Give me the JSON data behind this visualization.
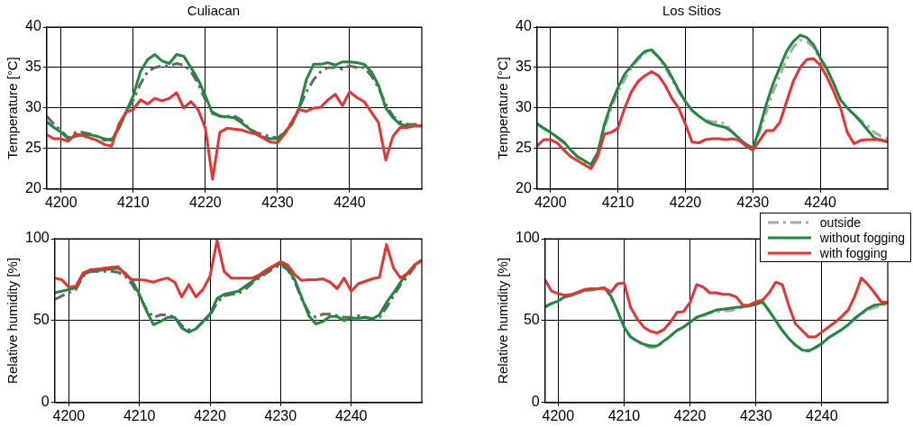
{
  "chart_data": [
    {
      "type": "line",
      "title": "Culiacan",
      "ylabel": "Temperature [°C]",
      "x": [
        4198,
        4199,
        4200,
        4201,
        4202,
        4203,
        4204,
        4205,
        4206,
        4207,
        4208,
        4209,
        4210,
        4211,
        4212,
        4213,
        4214,
        4215,
        4216,
        4217,
        4218,
        4219,
        4220,
        4221,
        4222,
        4223,
        4224,
        4225,
        4226,
        4227,
        4228,
        4229,
        4230,
        4231,
        4232,
        4233,
        4234,
        4235,
        4236,
        4237,
        4238,
        4239,
        4240,
        4241,
        4242,
        4243,
        4244,
        4245,
        4246,
        4247,
        4248,
        4249,
        4250
      ],
      "xlim": [
        4198,
        4250
      ],
      "xticks": [
        4200,
        4210,
        4220,
        4230,
        4240
      ],
      "ylim": [
        20,
        40
      ],
      "yticks": [
        20,
        25,
        30,
        35,
        40
      ],
      "grid": true,
      "series": [
        {
          "color": "#666666",
          "line_style": "dashed",
          "values": [
            29,
            28,
            27.2,
            26.3,
            27,
            27,
            26.8,
            26.5,
            26,
            26.2,
            27.5,
            29.5,
            31,
            33,
            34.5,
            35,
            35.2,
            35.2,
            35.5,
            35.3,
            34.5,
            33,
            31,
            29.5,
            29,
            29,
            29,
            28.5,
            27.5,
            27,
            26.7,
            26.5,
            26.3,
            27,
            28.3,
            30,
            32,
            33.5,
            34.5,
            35,
            35,
            34.8,
            35.2,
            35,
            35,
            34,
            32.5,
            30.5,
            29,
            28.3,
            28,
            28,
            28
          ]
        },
        {
          "color": "#1e8a3c",
          "line_style": "solid",
          "values": [
            28.3,
            27.6,
            27,
            26.2,
            26.5,
            26.7,
            26.7,
            26.5,
            26.2,
            26,
            27.5,
            29.5,
            31.5,
            34.5,
            36,
            36.6,
            35.8,
            35.5,
            36.6,
            36.4,
            35,
            33.5,
            31.5,
            29.3,
            29,
            28.9,
            28.8,
            28.2,
            27.5,
            26.8,
            26.4,
            26.2,
            26.2,
            27,
            28,
            30,
            33.5,
            35.4,
            35.4,
            35.6,
            35.3,
            35.7,
            35.7,
            35.6,
            35.4,
            34.5,
            32.8,
            30,
            28.8,
            28,
            27.8,
            27.8,
            27.8
          ]
        },
        {
          "color": "#ee3030",
          "line_style": "solid",
          "values": [
            26.7,
            26.2,
            26.2,
            25.9,
            26.8,
            26.6,
            26.3,
            26,
            25.5,
            25.3,
            28,
            29.5,
            29.8,
            31,
            30.5,
            31.2,
            30.9,
            31.2,
            31.9,
            30,
            30.8,
            29.8,
            27.5,
            21.2,
            27,
            27.5,
            27.4,
            27.3,
            27,
            26.8,
            26.3,
            25.8,
            25.7,
            26.8,
            28.3,
            29.8,
            29.6,
            30,
            30.1,
            31,
            31.7,
            30.3,
            32,
            31.3,
            30.8,
            29.5,
            28.2,
            23.6,
            26.5,
            27.6,
            27.6,
            27.8,
            27.8
          ]
        }
      ]
    },
    {
      "type": "line",
      "title": "Los Sitios",
      "ylabel": "Temperature [°C]",
      "x": [
        4198,
        4199,
        4200,
        4201,
        4202,
        4203,
        4204,
        4205,
        4206,
        4207,
        4208,
        4209,
        4210,
        4211,
        4212,
        4213,
        4214,
        4215,
        4216,
        4217,
        4218,
        4219,
        4220,
        4221,
        4222,
        4223,
        4224,
        4225,
        4226,
        4227,
        4228,
        4229,
        4230,
        4231,
        4232,
        4233,
        4234,
        4235,
        4236,
        4237,
        4238,
        4239,
        4240,
        4241,
        4242,
        4243,
        4244,
        4245,
        4246,
        4247,
        4248,
        4249,
        4250
      ],
      "xlim": [
        4198,
        4250
      ],
      "xticks": [
        4200,
        4210,
        4220,
        4230,
        4240
      ],
      "ylim": [
        20,
        40
      ],
      "yticks": [
        20,
        25,
        30,
        35,
        40
      ],
      "grid": true,
      "legend": "bottom right",
      "series": [
        {
          "name": "outside",
          "color": "#aaaaaa",
          "line_style": "dashed",
          "values": [
            28,
            27.5,
            27,
            26.3,
            25.6,
            24.8,
            24,
            23.3,
            22.8,
            24,
            27.5,
            30,
            32,
            33.5,
            35,
            36,
            36.8,
            37,
            36.3,
            35,
            33.5,
            32,
            30.8,
            29.7,
            29,
            28.5,
            28.3,
            28.3,
            28,
            27,
            26.3,
            25.5,
            25.2,
            27,
            29.5,
            32,
            34,
            36,
            37.5,
            38.4,
            38.2,
            37.5,
            36,
            34.5,
            33,
            31,
            30,
            29.2,
            28.5,
            27.8,
            27,
            26.5,
            26.2
          ]
        },
        {
          "name": "without fogging",
          "color": "#1e8a3c",
          "line_style": "solid",
          "values": [
            28.1,
            27.5,
            27,
            26.4,
            25.8,
            24.8,
            24,
            23.5,
            23,
            24.5,
            28,
            30.5,
            32.5,
            34.2,
            35.2,
            36.2,
            37,
            37.2,
            36.3,
            35.3,
            33.8,
            32.2,
            30.8,
            29.7,
            29,
            28.4,
            28,
            27.8,
            27.6,
            27,
            26.2,
            25.5,
            25,
            27.5,
            30.5,
            33,
            35,
            37,
            38.2,
            39,
            38.7,
            37.8,
            36.2,
            34.8,
            33,
            31,
            30,
            29.2,
            28.3,
            27.3,
            26.3,
            26,
            25.8
          ]
        },
        {
          "name": "with fogging",
          "color": "#ee3030",
          "line_style": "solid",
          "values": [
            25.3,
            26.1,
            26.1,
            25.7,
            24.8,
            24,
            23.5,
            23,
            22.5,
            24,
            26.8,
            27,
            27.5,
            30,
            32,
            33.3,
            34,
            34.5,
            34,
            32.8,
            31.2,
            30,
            28,
            25.8,
            25.7,
            26.1,
            26.2,
            26.2,
            26.1,
            26.2,
            26,
            25.3,
            24.8,
            26,
            27.2,
            27.2,
            28.2,
            30.8,
            33.3,
            35,
            36,
            36.1,
            35.3,
            33.8,
            32,
            30,
            27,
            25.6,
            26,
            26.1,
            26.1,
            26.1,
            25.8
          ]
        }
      ]
    },
    {
      "type": "line",
      "ylabel": "Relative humidity [%]",
      "x": [
        4198,
        4199,
        4200,
        4201,
        4202,
        4203,
        4204,
        4205,
        4206,
        4207,
        4208,
        4209,
        4210,
        4211,
        4212,
        4213,
        4214,
        4215,
        4216,
        4217,
        4218,
        4219,
        4220,
        4221,
        4222,
        4223,
        4224,
        4225,
        4226,
        4227,
        4228,
        4229,
        4230,
        4231,
        4232,
        4233,
        4234,
        4235,
        4236,
        4237,
        4238,
        4239,
        4240,
        4241,
        4242,
        4243,
        4244,
        4245,
        4246,
        4247,
        4248,
        4249,
        4250
      ],
      "xlim": [
        4198,
        4250
      ],
      "xticks": [
        4200,
        4210,
        4220,
        4230,
        4240
      ],
      "ylim": [
        0,
        100
      ],
      "yticks": [
        0,
        50,
        100
      ],
      "grid": true,
      "series": [
        {
          "color": "#666666",
          "line_style": "dashed",
          "values": [
            63,
            65,
            67,
            69,
            77,
            80,
            80,
            80,
            80,
            79.5,
            77,
            72,
            65,
            57,
            52,
            53.5,
            53.5,
            52,
            47,
            44.5,
            45,
            49,
            53,
            61,
            65,
            66,
            66.5,
            69,
            73,
            76,
            79,
            82,
            84,
            81,
            74,
            63,
            55,
            52,
            54,
            54,
            53,
            52,
            52,
            53,
            52,
            51,
            52,
            58,
            65,
            72,
            77,
            83,
            87
          ]
        },
        {
          "color": "#1e8a3c",
          "line_style": "solid",
          "values": [
            67,
            68,
            69,
            70,
            78,
            80,
            80.5,
            81,
            81.5,
            82,
            79,
            74,
            66,
            56,
            47.5,
            49.5,
            52,
            52,
            45.5,
            43,
            45,
            49.5,
            54,
            63.5,
            66,
            67,
            68,
            71,
            74,
            77,
            80,
            83,
            85,
            82,
            75,
            64,
            53,
            48,
            49.5,
            52.5,
            52.5,
            50,
            51.5,
            51.5,
            52,
            51,
            53.5,
            61,
            67,
            73.5,
            79,
            84,
            87
          ]
        },
        {
          "color": "#ee3030",
          "line_style": "solid",
          "values": [
            76,
            75,
            70.5,
            71,
            79,
            81,
            81.5,
            82,
            82.5,
            83,
            78,
            75,
            75,
            74.5,
            73.5,
            75,
            76,
            73.5,
            64.5,
            72,
            64.5,
            69,
            77,
            99,
            80,
            76,
            76,
            76,
            76,
            78,
            81,
            83.5,
            86,
            84,
            78,
            74.5,
            75,
            75,
            75.5,
            73.5,
            69.5,
            76,
            68,
            72.5,
            74,
            75.5,
            76.5,
            96.5,
            82,
            76,
            79,
            84,
            87
          ]
        }
      ]
    },
    {
      "type": "line",
      "ylabel": "Relative humidity [%]",
      "x": [
        4198,
        4199,
        4200,
        4201,
        4202,
        4203,
        4204,
        4205,
        4206,
        4207,
        4208,
        4209,
        4210,
        4211,
        4212,
        4213,
        4214,
        4215,
        4216,
        4217,
        4218,
        4219,
        4220,
        4221,
        4222,
        4223,
        4224,
        4225,
        4226,
        4227,
        4228,
        4229,
        4230,
        4231,
        4232,
        4233,
        4234,
        4235,
        4236,
        4237,
        4238,
        4239,
        4240,
        4241,
        4242,
        4243,
        4244,
        4245,
        4246,
        4247,
        4248,
        4249,
        4250
      ],
      "xlim": [
        4198,
        4250
      ],
      "xticks": [
        4200,
        4210,
        4220,
        4230,
        4240
      ],
      "ylim": [
        0,
        100
      ],
      "yticks": [
        0,
        50,
        100
      ],
      "grid": true,
      "series": [
        {
          "color": "#aaaaaa",
          "line_style": "dashed",
          "values": [
            58,
            60.5,
            62,
            64.5,
            65.5,
            67,
            68,
            68.5,
            69,
            69,
            65,
            56,
            46,
            40,
            37,
            35,
            33.5,
            34,
            37,
            40.5,
            44,
            46,
            49,
            52,
            53,
            54.5,
            55.5,
            56,
            56,
            57,
            58,
            59,
            60,
            61,
            56,
            50,
            44,
            39,
            35,
            32.5,
            32,
            33.5,
            36,
            39.5,
            42,
            44.5,
            47.5,
            51,
            54,
            56.5,
            58,
            59,
            60.5
          ]
        },
        {
          "color": "#1e8a3c",
          "line_style": "solid",
          "values": [
            58.5,
            60.5,
            62,
            64.5,
            65.5,
            67,
            68.5,
            69,
            69.5,
            70,
            65,
            56,
            46,
            40,
            37.5,
            35.5,
            34.5,
            34.5,
            37.5,
            40.5,
            44,
            46,
            49,
            52,
            53.5,
            55,
            56.5,
            57,
            57.5,
            58,
            58.5,
            59,
            60,
            61.5,
            56,
            50,
            44,
            39,
            35,
            32,
            31.5,
            33.5,
            36,
            39.5,
            42,
            44.5,
            47.5,
            51.5,
            54.5,
            57.5,
            59.5,
            60,
            61
          ]
        },
        {
          "color": "#ee3030",
          "line_style": "solid",
          "values": [
            75,
            68,
            66.5,
            65.5,
            66,
            67.5,
            69,
            69.5,
            69.5,
            70,
            67.5,
            72.5,
            73,
            58,
            51,
            46,
            43.5,
            42.5,
            44.5,
            49,
            55,
            55.5,
            61,
            72,
            70.5,
            67,
            67,
            66,
            66,
            64.5,
            59.5,
            59.5,
            61.5,
            62.5,
            67,
            73.5,
            72,
            59,
            48,
            44,
            40,
            40,
            43,
            46,
            49,
            52.5,
            56.5,
            65,
            76,
            72,
            67,
            61.5,
            61
          ]
        }
      ]
    }
  ]
}
